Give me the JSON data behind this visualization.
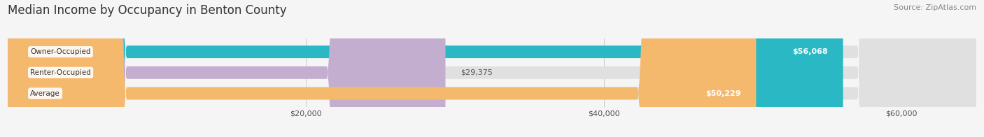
{
  "title": "Median Income by Occupancy in Benton County",
  "source": "Source: ZipAtlas.com",
  "categories": [
    "Owner-Occupied",
    "Renter-Occupied",
    "Average"
  ],
  "values": [
    56068,
    29375,
    50229
  ],
  "bar_colors": [
    "#2ab8c5",
    "#c4aed0",
    "#f5b96e"
  ],
  "value_labels": [
    "$56,068",
    "$29,375",
    "$50,229"
  ],
  "xlim": [
    0,
    65000
  ],
  "xticks": [
    20000,
    40000,
    60000
  ],
  "xticklabels": [
    "$20,000",
    "$40,000",
    "$60,000"
  ],
  "background_color": "#f5f5f5",
  "bar_background_color": "#e0e0e0",
  "title_fontsize": 12,
  "source_fontsize": 8,
  "bar_height": 0.6,
  "figsize": [
    14.06,
    1.96
  ],
  "dpi": 100
}
